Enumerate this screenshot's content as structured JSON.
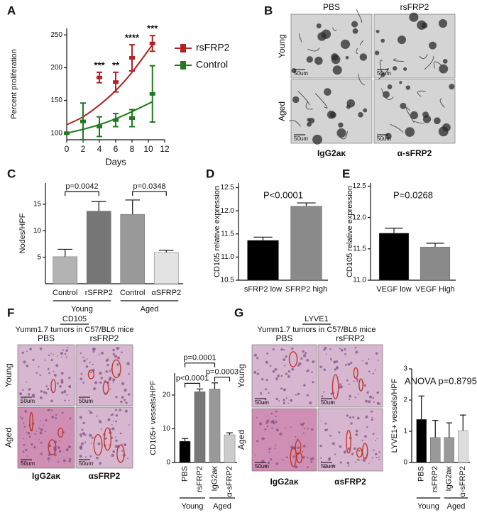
{
  "panels": [
    "A",
    "B",
    "C",
    "D",
    "E",
    "F",
    "G"
  ],
  "chart_data": [
    {
      "type": "line",
      "xlabel": "Days",
      "ylabel": "Percent proliferation",
      "x": [
        0,
        2,
        4,
        6,
        8,
        10.5
      ],
      "xlim": [
        0,
        12
      ],
      "xticks": [
        0,
        2,
        4,
        6,
        8,
        10,
        12
      ],
      "ylim": [
        90,
        260
      ],
      "yticks": [
        100,
        150,
        200,
        250
      ],
      "series": [
        {
          "name": "rsFRP2",
          "color": "#b22222",
          "values": [
            null,
            null,
            185,
            178,
            215,
            237
          ],
          "errors": [
            null,
            null,
            8,
            15,
            20,
            12
          ],
          "fit": [
            113,
            125,
            143,
            165,
            193,
            235
          ]
        },
        {
          "name": "Control",
          "color": "#1e7b1e",
          "values": [
            100,
            118,
            110,
            120,
            123,
            160
          ],
          "errors": [
            0,
            28,
            15,
            10,
            13,
            43
          ],
          "fit": [
            100,
            106,
            113,
            122,
            133,
            148
          ]
        }
      ],
      "annotations": [
        {
          "x": 4,
          "text": "***"
        },
        {
          "x": 6,
          "text": "**"
        },
        {
          "x": 8,
          "text": "****"
        },
        {
          "x": 10.5,
          "text": "***"
        }
      ]
    },
    {
      "type": "bar",
      "ylabel": "Nodes/HPF",
      "categories": [
        "Control",
        "rSFRP2",
        "Control",
        "αSFRP2"
      ],
      "values": [
        5.1,
        13.7,
        13.1,
        5.9
      ],
      "errors": [
        1.4,
        1.8,
        2.7,
        0.4
      ],
      "colors": [
        "#b3b3b3",
        "#777777",
        "#999999",
        "#e3e3e3"
      ],
      "ylim": [
        0,
        19
      ],
      "yticks": [
        5,
        10,
        15
      ],
      "groups": [
        {
          "label": "Young",
          "from": 0,
          "to": 1
        },
        {
          "label": "Aged",
          "from": 2,
          "to": 3
        }
      ],
      "annotations": [
        {
          "text": "p=0.0042",
          "from": 0,
          "to": 1
        },
        {
          "text": "p=0.0348",
          "from": 2,
          "to": 3
        }
      ]
    },
    {
      "type": "bar",
      "ylabel": "CD105 relative expression",
      "categories": [
        "sFRP2 low",
        "SFRP2 high"
      ],
      "values": [
        11.36,
        12.1
      ],
      "errors": [
        0.07,
        0.07
      ],
      "colors": [
        "#000000",
        "#8a8a8a"
      ],
      "ylim": [
        10.5,
        12.6
      ],
      "yticks": [
        10.5,
        {
          "value": 11,
          "label": "11.0"
        },
        11.5,
        {
          "value": 12,
          "label": "12.0"
        },
        12.5
      ],
      "annotations": [
        {
          "text": "P<0.0001"
        }
      ]
    },
    {
      "type": "bar",
      "ylabel": "CD105 relative expression",
      "categories": [
        "VEGF low",
        "VEGF High"
      ],
      "values": [
        11.75,
        11.53
      ],
      "errors": [
        0.08,
        0.06
      ],
      "colors": [
        "#000000",
        "#8a8a8a"
      ],
      "ylim": [
        11,
        12.55
      ],
      "yticks": [
        {
          "value": 11,
          "label": "11.0"
        },
        11.5,
        {
          "value": 12,
          "label": "12.0"
        },
        12.5
      ],
      "annotations": [
        {
          "text": "P=0.0268"
        }
      ]
    },
    {
      "type": "bar",
      "ylabel": "CD105+ vessels/HPF",
      "categories": [
        "PBS",
        "rsFRP2",
        "IgG2aκ",
        "α-sFRP2"
      ],
      "values": [
        6.3,
        21,
        21.8,
        8.2
      ],
      "errors": [
        0.8,
        0.8,
        1.8,
        0.6
      ],
      "colors": [
        "#000000",
        "#777777",
        "#999999",
        "#cccccc"
      ],
      "ylim": [
        0,
        26.5
      ],
      "yticks": [
        0,
        10,
        20
      ],
      "rotate_labels": true,
      "groups": [
        {
          "label": "Young",
          "from": 0,
          "to": 1
        },
        {
          "label": "Aged",
          "from": 2,
          "to": 3
        }
      ],
      "annotations": [
        {
          "text": "p<0.0001",
          "from": 0,
          "to": 1
        },
        {
          "text": "p=0.0003",
          "from": 2,
          "to": 3
        },
        {
          "text": "p=0.0001",
          "from": 0,
          "to": 2
        }
      ]
    },
    {
      "type": "bar",
      "ylabel": "LYVE1+ vessels/HPF",
      "categories": [
        "PBS",
        "rsFRP2",
        "IgG2aκ",
        "α-sFRP2"
      ],
      "values": [
        1.38,
        0.8,
        0.8,
        1.02
      ],
      "errors": [
        0.75,
        0.55,
        0.47,
        0.5
      ],
      "colors": [
        "#000000",
        "#999999",
        "#999999",
        "#dddddd"
      ],
      "ylim": [
        0,
        3
      ],
      "yticks": [
        0,
        1,
        2,
        3
      ],
      "rotate_labels": true,
      "groups": [
        {
          "label": "Young",
          "from": 0,
          "to": 1
        },
        {
          "label": "Aged",
          "from": 2,
          "to": 3
        }
      ],
      "annotations": [
        {
          "text": "ANOVA p=0.8795"
        }
      ]
    }
  ],
  "micrographs": [
    {
      "columns": [
        "PBS",
        "rsFRP2"
      ],
      "rows": [
        "Young",
        "Aged"
      ],
      "scale": [
        "50um",
        "50um",
        "50um",
        "50um"
      ],
      "bottom": [
        "IgG2aκ",
        "α-sFRP2"
      ]
    },
    {
      "heading": "CD105",
      "subheading": "Yumm1.7 tumors in C57/BL6 mice",
      "columns": [
        "PBS",
        "rsFRP2"
      ],
      "rows": [
        "Young",
        "Aged"
      ],
      "scale": [
        "50um",
        "50um",
        "50um",
        "50um"
      ],
      "bottom": [
        "IgG2aκ",
        "αsFRP2"
      ]
    },
    {
      "heading": "LYVE1",
      "subheading": "Yumm1.7 tumors in C57/BL6 mice",
      "columns": [
        "PBS",
        "rsFRP2"
      ],
      "rows": [
        "Young",
        "Aged"
      ],
      "scale": [
        "50um",
        "50um",
        "50um",
        "50um"
      ],
      "bottom": [
        "IgG2aκ",
        "αsFRP2"
      ]
    }
  ]
}
